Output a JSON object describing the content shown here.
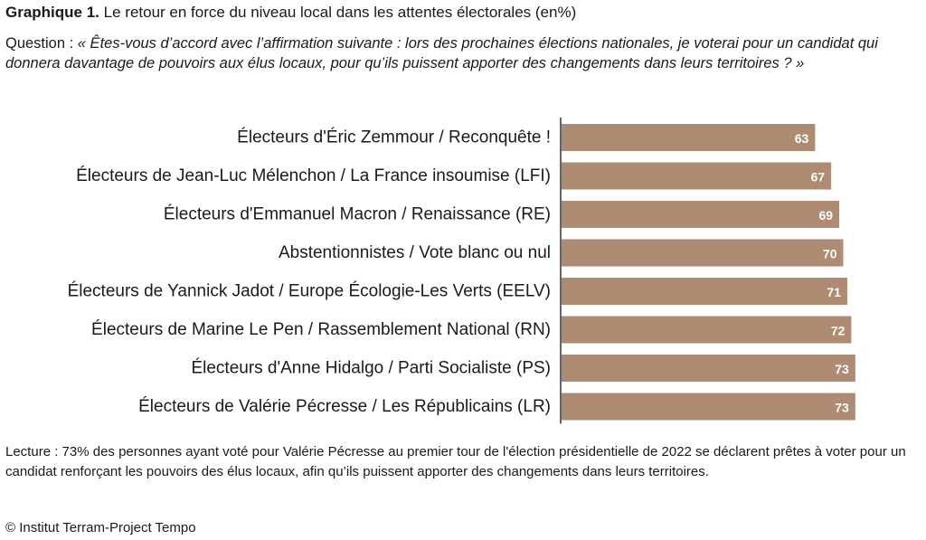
{
  "header": {
    "title_lead": "Graphique 1.",
    "title_rest": " Le retour en force du niveau local dans les attentes électorales (en%)",
    "question_lead": "Question : ",
    "question_text": "« Êtes-vous d’accord avec l’affirmation suivante : lors des prochaines élections nationales, je voterai pour un candidat qui donnera davantage de pouvoirs aux élus locaux, pour qu’ils puissent apporter des changements dans leurs territoires ? »"
  },
  "chart_data": {
    "type": "bar",
    "orientation": "horizontal",
    "categories": [
      "Électeurs d'Éric Zemmour / Reconquête !",
      "Électeurs de Jean-Luc Mélenchon / La France insoumise (LFI)",
      "Électeurs d'Emmanuel Macron / Renaissance (RE)",
      "Abstentionnistes / Vote blanc ou nul",
      "Électeurs de Yannick Jadot / Europe Écologie-Les Verts (EELV)",
      "Électeurs de Marine Le Pen / Rassemblement National (RN)",
      "Électeurs d'Anne Hidalgo / Parti Socialiste (PS)",
      "Électeurs de Valérie Pécresse / Les Républicains (LR)"
    ],
    "values": [
      63,
      67,
      69,
      70,
      71,
      72,
      73,
      73
    ],
    "xlim": [
      0,
      100
    ],
    "bar_color": "#b08b73",
    "axis_color": "#333333",
    "grid": false
  },
  "footer": {
    "reading": "Lecture : 73% des personnes ayant voté pour Valérie Pécresse au premier tour de l'élection présidentielle de 2022 se déclarent prêtes à voter pour un candidat renforçant les pouvoirs des élus locaux, afin qu’ils puissent apporter des changements dans leurs territoires.",
    "source": "© Institut Terram-Project Tempo"
  }
}
